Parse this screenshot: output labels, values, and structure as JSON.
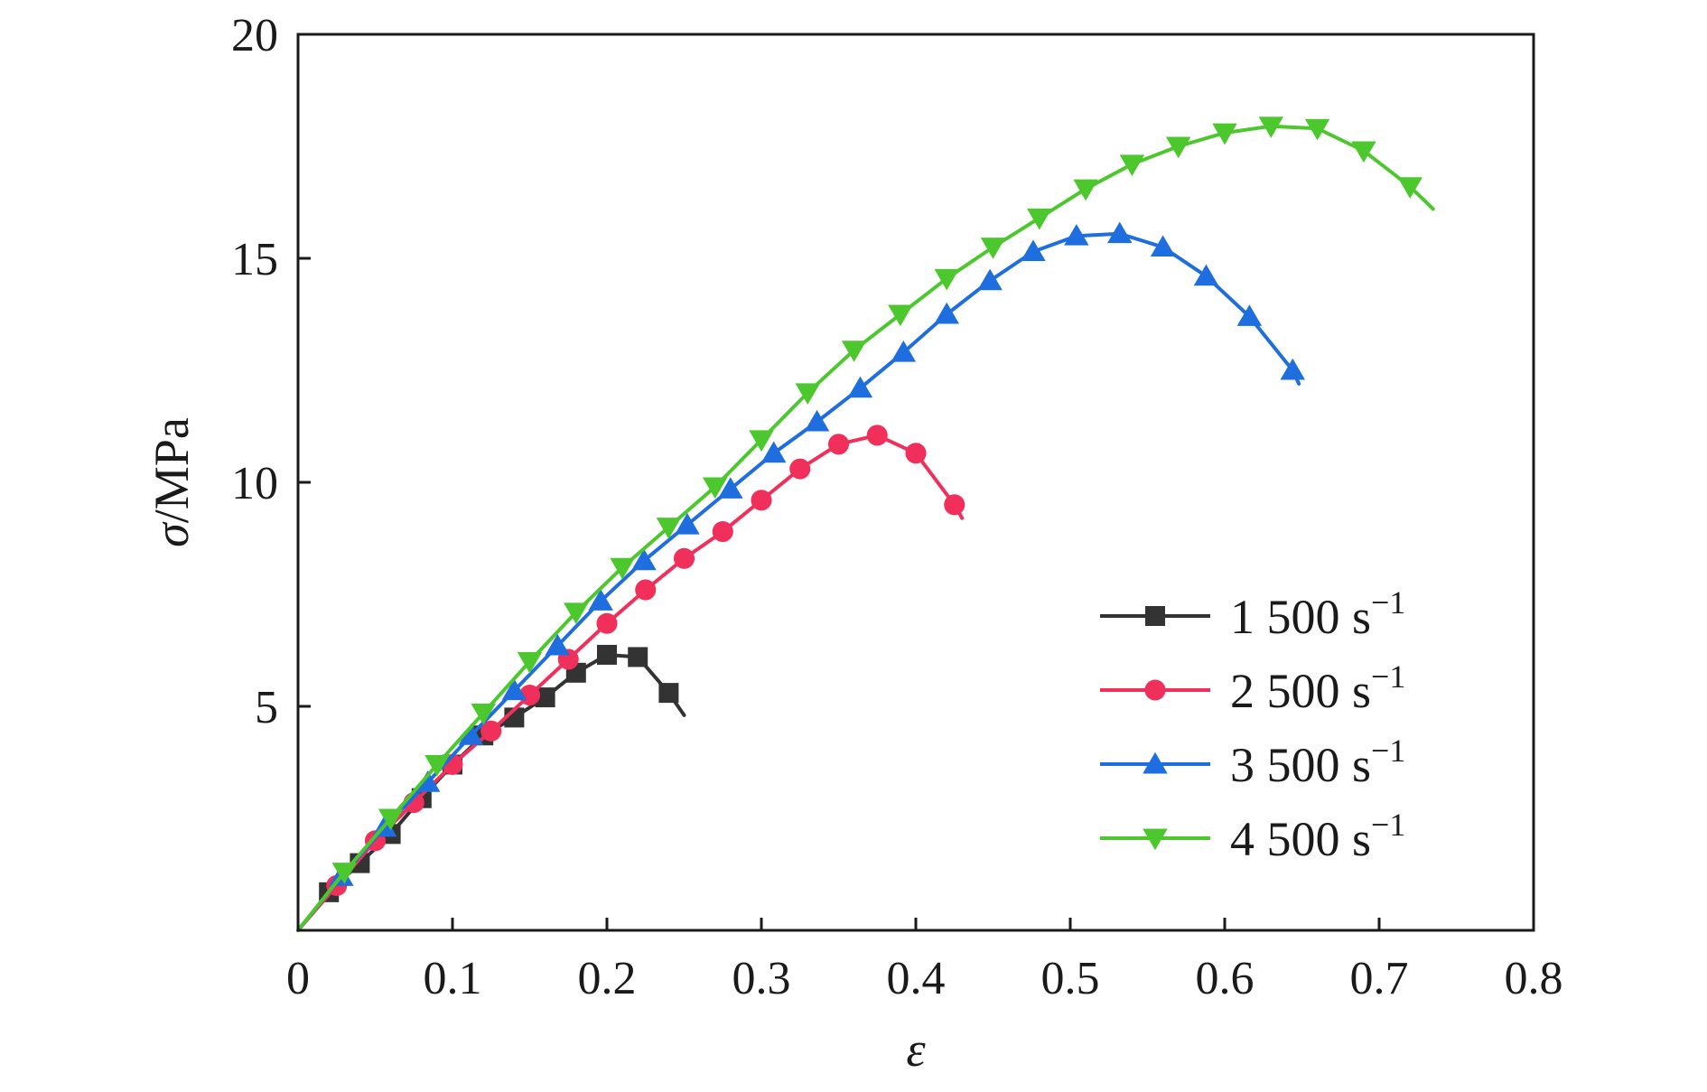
{
  "chart_data": {
    "type": "line",
    "title": "",
    "xlabel": "ε",
    "ylabel": "σ/MPa",
    "xlim": [
      0,
      0.8
    ],
    "ylim": [
      0,
      20
    ],
    "x_ticks": [
      "0",
      "0.1",
      "0.2",
      "0.3",
      "0.4",
      "0.5",
      "0.6",
      "0.7",
      "0.8"
    ],
    "y_ticks": [
      "5",
      "10",
      "15",
      "20"
    ],
    "grid": false,
    "legend_position": "lower-right",
    "series": [
      {
        "name": "1 500 s",
        "name_sup": "−1",
        "color": "#333333",
        "marker": "square",
        "x": [
          0,
          0.02,
          0.04,
          0.06,
          0.08,
          0.1,
          0.12,
          0.14,
          0.16,
          0.18,
          0.2,
          0.22,
          0.24,
          0.25
        ],
        "y": [
          0,
          0.85,
          1.5,
          2.15,
          2.95,
          3.7,
          4.35,
          4.75,
          5.2,
          5.75,
          6.15,
          6.1,
          5.3,
          4.8
        ]
      },
      {
        "name": "2 500 s",
        "name_sup": "−1",
        "color": "#f0305a",
        "marker": "circle",
        "x": [
          0,
          0.025,
          0.05,
          0.075,
          0.1,
          0.125,
          0.15,
          0.175,
          0.2,
          0.225,
          0.25,
          0.275,
          0.3,
          0.325,
          0.35,
          0.375,
          0.4,
          0.425,
          0.43
        ],
        "y": [
          0,
          1.0,
          2.0,
          2.85,
          3.7,
          4.45,
          5.25,
          6.05,
          6.85,
          7.6,
          8.3,
          8.9,
          9.6,
          10.3,
          10.85,
          11.05,
          10.65,
          9.5,
          9.2
        ]
      },
      {
        "name": "3 500 s",
        "name_sup": "−1",
        "color": "#1f6ee0",
        "marker": "triangle-up",
        "x": [
          0,
          0.028,
          0.056,
          0.084,
          0.112,
          0.14,
          0.168,
          0.196,
          0.224,
          0.252,
          0.28,
          0.308,
          0.336,
          0.364,
          0.392,
          0.42,
          0.448,
          0.476,
          0.504,
          0.532,
          0.56,
          0.588,
          0.616,
          0.644,
          0.648
        ],
        "y": [
          0,
          1.2,
          2.3,
          3.3,
          4.35,
          5.35,
          6.35,
          7.35,
          8.25,
          9.05,
          9.85,
          10.65,
          11.35,
          12.1,
          12.9,
          13.75,
          14.5,
          15.15,
          15.5,
          15.55,
          15.25,
          14.6,
          13.7,
          12.5,
          12.2
        ]
      },
      {
        "name": "4 500 s",
        "name_sup": "−1",
        "color": "#4cc82e",
        "marker": "triangle-down",
        "x": [
          0,
          0.03,
          0.06,
          0.09,
          0.12,
          0.15,
          0.18,
          0.21,
          0.24,
          0.27,
          0.3,
          0.33,
          0.36,
          0.39,
          0.42,
          0.45,
          0.48,
          0.51,
          0.54,
          0.57,
          0.6,
          0.63,
          0.66,
          0.69,
          0.72,
          0.735
        ],
        "y": [
          0,
          1.3,
          2.5,
          3.7,
          4.85,
          6.0,
          7.1,
          8.1,
          9.0,
          9.9,
          10.95,
          12.0,
          12.95,
          13.75,
          14.55,
          15.25,
          15.9,
          16.55,
          17.1,
          17.5,
          17.8,
          17.95,
          17.9,
          17.4,
          16.6,
          16.1
        ]
      }
    ]
  }
}
